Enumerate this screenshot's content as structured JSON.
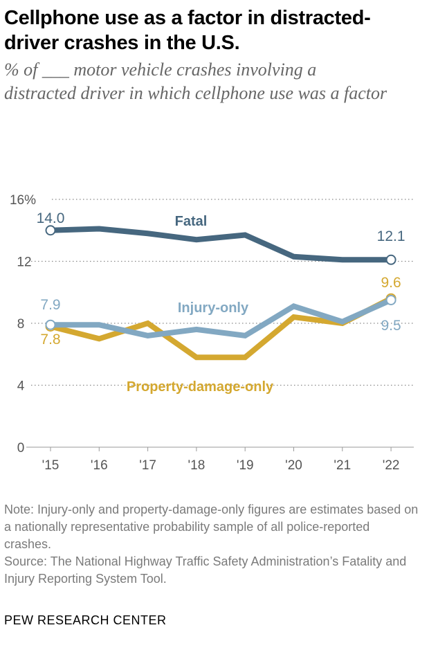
{
  "title": "Cellphone use as a factor in distracted-driver crashes in the U.S.",
  "subtitle": "% of ___ motor vehicle crashes involving a distracted driver in which cellphone use was a factor",
  "chart_data": {
    "type": "line",
    "categories": [
      "'15",
      "'16",
      "'17",
      "'18",
      "'19",
      "'20",
      "'21",
      "'22"
    ],
    "ylim": [
      0,
      16
    ],
    "yticks": [
      0,
      4,
      8,
      12,
      16
    ],
    "ytick_labels": [
      "0",
      "4",
      "8",
      "12",
      "16%"
    ],
    "grid": "dotted horizontal",
    "series": [
      {
        "name": "Fatal",
        "color": "#46677f",
        "values": [
          14.0,
          14.1,
          13.8,
          13.4,
          13.7,
          12.3,
          12.1,
          12.1
        ],
        "start_label": "14.0",
        "end_label": "12.1"
      },
      {
        "name": "Injury-only",
        "color": "#82a8c2",
        "values": [
          7.9,
          7.9,
          7.2,
          7.6,
          7.2,
          9.1,
          8.1,
          9.5
        ],
        "start_label": "7.9",
        "end_label": "9.5"
      },
      {
        "name": "Property-damage-only",
        "color": "#d4a830",
        "values": [
          7.8,
          7.0,
          8.0,
          5.8,
          5.8,
          8.4,
          8.0,
          9.6
        ],
        "start_label": "7.8",
        "end_label": "9.6"
      }
    ]
  },
  "note": "Note: Injury-only and property-damage-only figures are estimates based on a nationally representative probability sample of all police-reported crashes.",
  "source": "Source: The National Highway Traffic Safety Administration’s Fatality and Injury Reporting System Tool.",
  "footer": "PEW RESEARCH CENTER"
}
